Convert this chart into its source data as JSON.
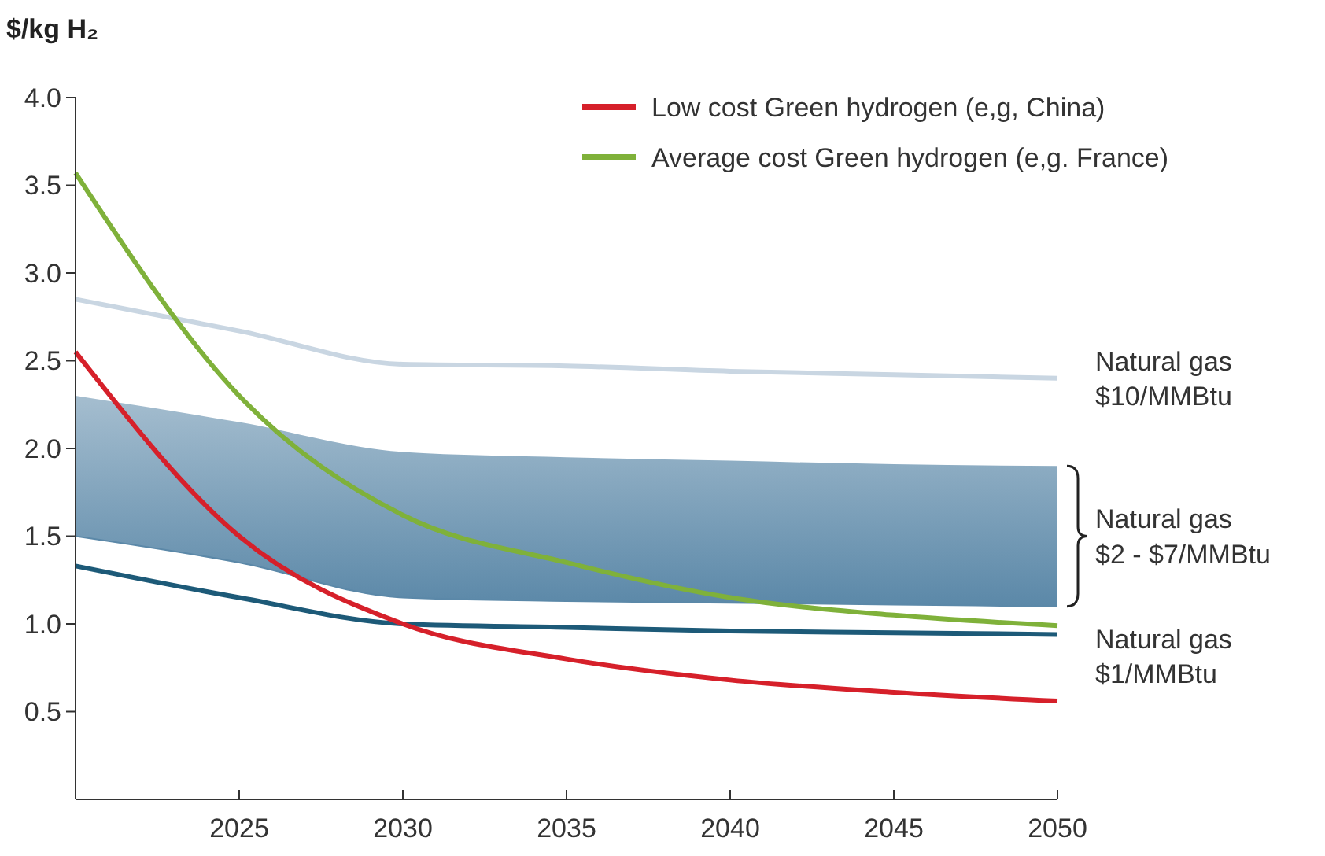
{
  "chart_data": {
    "type": "line",
    "ylabel": "$/kg H₂",
    "x": [
      2020,
      2025,
      2030,
      2035,
      2040,
      2045,
      2050
    ],
    "xlim": [
      2020,
      2050
    ],
    "xticks": [
      2025,
      2030,
      2035,
      2040,
      2045,
      2050
    ],
    "ylim": [
      0,
      4
    ],
    "yticks": [
      {
        "value": 0.5,
        "label": "0.5"
      },
      {
        "value": 1,
        "label": "1.0"
      },
      {
        "value": 1.5,
        "label": "1.5"
      },
      {
        "value": 2,
        "label": "2.0"
      },
      {
        "value": 2.5,
        "label": "2.5"
      },
      {
        "value": 3,
        "label": "3.0"
      },
      {
        "value": 3.5,
        "label": "3.5"
      },
      {
        "value": 4,
        "label": "4.0"
      }
    ],
    "grid": false,
    "legend": "top right",
    "series": [
      {
        "name": "Natural gas\n$2 - $7/MMBtu",
        "color": "#5b88a8",
        "values": [
          1.5,
          1.35,
          1.15,
          1.13,
          1.12,
          1.11,
          1.1
        ],
        "lower": [
          1.5,
          1.35,
          1.15,
          1.13,
          1.12,
          1.11,
          1.1
        ],
        "upper": [
          2.3,
          2.15,
          1.98,
          1.95,
          1.93,
          1.91,
          1.9
        ]
      },
      {
        "name": "Natural gas\n$10/MMBtu",
        "color": "#c9d6e2",
        "values": [
          2.85,
          2.67,
          2.48,
          2.47,
          2.44,
          2.42,
          2.4
        ]
      },
      {
        "name": "Natural gas\n$1/MMBtu",
        "color": "#1d5a78",
        "values": [
          1.33,
          1.15,
          1.0,
          0.98,
          0.96,
          0.95,
          0.94
        ]
      },
      {
        "name": "Low cost Green hydrogen (e,g, China)",
        "color": "#d6202a",
        "values": [
          2.55,
          1.5,
          1.0,
          0.8,
          0.68,
          0.61,
          0.56
        ]
      },
      {
        "name": "Average cost Green hydrogen (e,g. France)",
        "color": "#7fb13a",
        "values": [
          3.57,
          2.3,
          1.62,
          1.35,
          1.15,
          1.05,
          0.99
        ]
      }
    ]
  }
}
